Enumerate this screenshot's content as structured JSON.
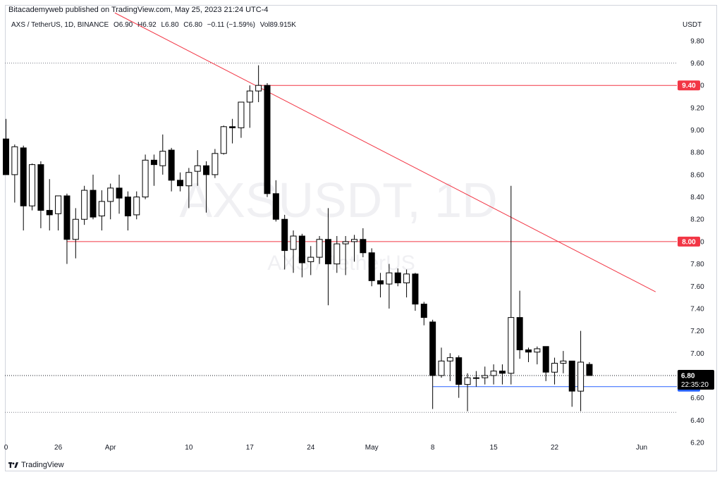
{
  "header": {
    "publisher": "Bitacademyweb published on TradingView.com, May 25, 2023 21:24 UTC-4",
    "symbol": "AXS / TetherUS, 1D, BINANCE",
    "open": "O6.90",
    "high": "H6.92",
    "low": "L6.80",
    "close": "C6.80",
    "change": "−0.11 (−1.59%)",
    "volume": "Vol89.915K",
    "currency": "USDT"
  },
  "watermark": {
    "main": "AXSUSDT, 1D",
    "sub": "AXS / TetherUS"
  },
  "footer": {
    "brand": "TradingView"
  },
  "colors": {
    "up_fill": "#ffffff",
    "down_fill": "#000000",
    "candle_border": "#000000",
    "line_red": "#f23645",
    "line_blue": "#2962ff",
    "last_price_bg": "#000000"
  },
  "chart_data": {
    "type": "candlestick",
    "ylim": [
      6.2,
      9.9
    ],
    "yticks": [
      "9.80",
      "9.60",
      "9.40",
      "9.20",
      "9.00",
      "8.80",
      "8.60",
      "8.40",
      "8.20",
      "8.00",
      "7.80",
      "7.60",
      "7.40",
      "7.20",
      "7.00",
      "6.80",
      "6.60",
      "6.40",
      "6.20"
    ],
    "xticks": [
      {
        "label": "0",
        "day": 0
      },
      {
        "label": "26",
        "day": 6
      },
      {
        "label": "Apr",
        "day": 12
      },
      {
        "label": "10",
        "day": 21
      },
      {
        "label": "17",
        "day": 28
      },
      {
        "label": "24",
        "day": 35
      },
      {
        "label": "May",
        "day": 42
      },
      {
        "label": "8",
        "day": 49
      },
      {
        "label": "15",
        "day": 56
      },
      {
        "label": "22",
        "day": 63
      },
      {
        "label": "Jun",
        "day": 73
      }
    ],
    "candles": [
      [
        0,
        8.92,
        9.1,
        8.6,
        8.6
      ],
      [
        1,
        8.6,
        8.87,
        8.35,
        8.85
      ],
      [
        2,
        8.84,
        8.86,
        8.1,
        8.32
      ],
      [
        3,
        8.32,
        8.7,
        8.28,
        8.69
      ],
      [
        4,
        8.69,
        8.72,
        8.12,
        8.28
      ],
      [
        5,
        8.28,
        8.56,
        8.1,
        8.24
      ],
      [
        6,
        8.25,
        8.38,
        8.1,
        8.41
      ],
      [
        7,
        8.41,
        8.43,
        7.8,
        8.02
      ],
      [
        8,
        8.02,
        8.3,
        7.85,
        8.2
      ],
      [
        9,
        8.2,
        8.5,
        8.15,
        8.46
      ],
      [
        10,
        8.46,
        8.6,
        8.2,
        8.22
      ],
      [
        11,
        8.23,
        8.46,
        8.1,
        8.36
      ],
      [
        12,
        8.36,
        8.52,
        8.2,
        8.48
      ],
      [
        13,
        8.48,
        8.6,
        8.25,
        8.39
      ],
      [
        14,
        8.4,
        8.45,
        8.1,
        8.23
      ],
      [
        15,
        8.24,
        8.45,
        8.2,
        8.4
      ],
      [
        16,
        8.4,
        8.78,
        8.38,
        8.73
      ],
      [
        17,
        8.73,
        8.78,
        8.5,
        8.69
      ],
      [
        18,
        8.68,
        8.96,
        8.6,
        8.81
      ],
      [
        19,
        8.82,
        8.84,
        8.45,
        8.55
      ],
      [
        20,
        8.55,
        8.62,
        8.45,
        8.5
      ],
      [
        21,
        8.5,
        8.66,
        8.3,
        8.62
      ],
      [
        22,
        8.63,
        8.82,
        8.5,
        8.68
      ],
      [
        23,
        8.68,
        8.72,
        8.26,
        8.6
      ],
      [
        24,
        8.6,
        8.83,
        8.57,
        8.79
      ],
      [
        25,
        8.79,
        9.04,
        8.78,
        9.03
      ],
      [
        26,
        9.03,
        9.1,
        8.88,
        9.02
      ],
      [
        27,
        9.02,
        9.23,
        8.93,
        9.25
      ],
      [
        28,
        9.25,
        9.4,
        9.02,
        9.35
      ],
      [
        29,
        9.35,
        9.58,
        9.25,
        9.4
      ],
      [
        30,
        9.4,
        9.42,
        8.4,
        8.43
      ],
      [
        31,
        8.43,
        8.55,
        8.18,
        8.2
      ],
      [
        32,
        8.2,
        8.24,
        7.75,
        7.92
      ],
      [
        33,
        7.93,
        8.1,
        7.72,
        8.05
      ],
      [
        34,
        8.05,
        8.07,
        7.68,
        7.81
      ],
      [
        35,
        7.82,
        7.96,
        7.7,
        7.86
      ],
      [
        36,
        7.86,
        8.05,
        7.8,
        8.02
      ],
      [
        37,
        8.02,
        8.3,
        7.43,
        7.8
      ],
      [
        38,
        7.8,
        8.05,
        7.72,
        7.98
      ],
      [
        39,
        7.98,
        8.05,
        7.7,
        8.0
      ],
      [
        40,
        8.0,
        8.06,
        7.82,
        8.02
      ],
      [
        41,
        8.02,
        8.12,
        7.86,
        7.9
      ],
      [
        42,
        7.9,
        7.94,
        7.6,
        7.65
      ],
      [
        43,
        7.65,
        7.72,
        7.5,
        7.62
      ],
      [
        44,
        7.62,
        7.8,
        7.4,
        7.72
      ],
      [
        45,
        7.72,
        7.76,
        7.6,
        7.63
      ],
      [
        46,
        7.63,
        7.75,
        7.5,
        7.71
      ],
      [
        47,
        7.71,
        7.72,
        7.38,
        7.44
      ],
      [
        48,
        7.44,
        7.46,
        7.25,
        7.32
      ],
      [
        49,
        7.28,
        7.3,
        6.5,
        6.8
      ],
      [
        50,
        6.8,
        7.05,
        6.78,
        6.93
      ],
      [
        51,
        6.93,
        7.0,
        6.75,
        6.96
      ],
      [
        52,
        6.96,
        6.98,
        6.6,
        6.72
      ],
      [
        53,
        6.72,
        6.82,
        6.48,
        6.78
      ],
      [
        54,
        6.78,
        6.84,
        6.7,
        6.78
      ],
      [
        55,
        6.78,
        6.88,
        6.72,
        6.8
      ],
      [
        56,
        6.8,
        6.9,
        6.72,
        6.84
      ],
      [
        57,
        6.84,
        6.9,
        6.72,
        6.82
      ],
      [
        58,
        6.82,
        8.5,
        6.72,
        7.32
      ],
      [
        59,
        7.32,
        7.56,
        6.95,
        7.03
      ],
      [
        60,
        7.03,
        7.05,
        6.92,
        7.01
      ],
      [
        61,
        7.01,
        7.06,
        6.9,
        7.04
      ],
      [
        62,
        7.06,
        7.06,
        6.75,
        6.83
      ],
      [
        63,
        6.83,
        6.96,
        6.72,
        6.91
      ],
      [
        64,
        6.91,
        7.02,
        6.82,
        6.93
      ],
      [
        65,
        6.93,
        6.93,
        6.52,
        6.66
      ],
      [
        66,
        6.66,
        7.2,
        6.48,
        6.92
      ],
      [
        67,
        6.9,
        6.92,
        6.8,
        6.8
      ]
    ],
    "levels": [
      {
        "name": "9.40",
        "price": 9.4,
        "color": "#f23645",
        "from_day": 29
      },
      {
        "name": "8.00",
        "price": 8.0,
        "color": "#f23645",
        "from_day": 7
      },
      {
        "name": "6.70",
        "price": 6.7,
        "color": "#2962ff",
        "from_day": 49
      }
    ],
    "trendline": {
      "start": {
        "day": 12.5,
        "price": 10.05
      },
      "end": {
        "day": 74.6,
        "price": 7.55
      },
      "color": "#f23645"
    },
    "last_price": {
      "price": "6.80",
      "countdown": "22:35:20"
    },
    "dotted_levels": [
      9.6,
      6.47
    ]
  }
}
